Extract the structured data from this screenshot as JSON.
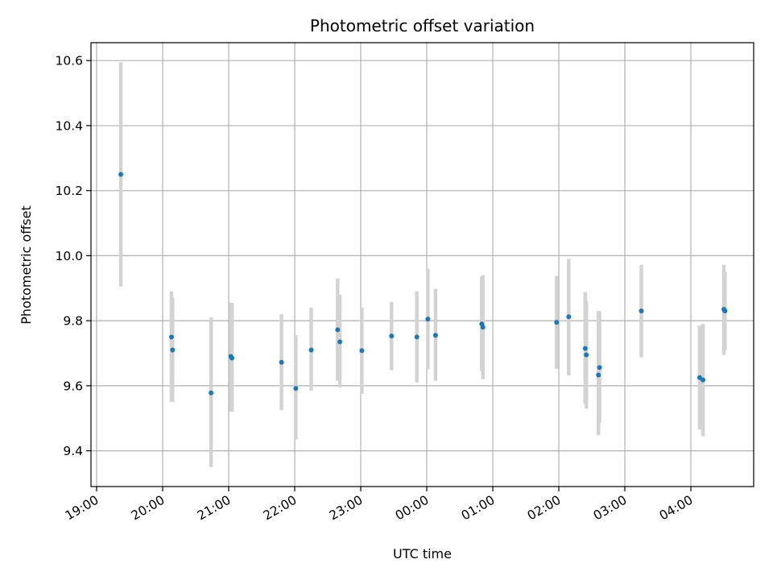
{
  "chart_data": {
    "type": "scatter",
    "title": "Photometric offset variation",
    "xlabel": "UTC time",
    "ylabel": "Photometric offset",
    "xlim": [
      "19:00",
      "05:00"
    ],
    "ylim": [
      9.29,
      10.655
    ],
    "grid": true,
    "legend": "none",
    "x_ticks": [
      "19:00",
      "20:00",
      "21:00",
      "22:00",
      "23:00",
      "00:00",
      "01:00",
      "02:00",
      "03:00",
      "04:00"
    ],
    "y_ticks": [
      "9.4",
      "9.6",
      "9.8",
      "10.0",
      "10.2",
      "10.4",
      "10.6"
    ],
    "colors": {
      "point": "#1f77b4",
      "errorbar": "#d3d3d3",
      "grid": "#b0b0b0"
    },
    "points": [
      {
        "time": "19:22",
        "y": 10.25,
        "lo": 9.905,
        "hi": 10.595
      },
      {
        "time": "20:08",
        "y": 9.75,
        "lo": 9.55,
        "hi": 9.89
      },
      {
        "time": "20:09",
        "y": 9.71,
        "lo": 9.55,
        "hi": 9.87
      },
      {
        "time": "20:44",
        "y": 9.578,
        "lo": 9.35,
        "hi": 9.81
      },
      {
        "time": "21:02",
        "y": 9.69,
        "lo": 9.52,
        "hi": 9.855
      },
      {
        "time": "21:03",
        "y": 9.685,
        "lo": 9.52,
        "hi": 9.855
      },
      {
        "time": "21:48",
        "y": 9.672,
        "lo": 9.525,
        "hi": 9.82
      },
      {
        "time": "22:01",
        "y": 9.592,
        "lo": 9.435,
        "hi": 9.755
      },
      {
        "time": "22:15",
        "y": 9.71,
        "lo": 9.585,
        "hi": 9.84
      },
      {
        "time": "22:39",
        "y": 9.772,
        "lo": 9.615,
        "hi": 9.93
      },
      {
        "time": "22:41",
        "y": 9.735,
        "lo": 9.595,
        "hi": 9.88
      },
      {
        "time": "23:01",
        "y": 9.708,
        "lo": 9.575,
        "hi": 9.84
      },
      {
        "time": "23:28",
        "y": 9.753,
        "lo": 9.648,
        "hi": 9.858
      },
      {
        "time": "23:51",
        "y": 9.75,
        "lo": 9.61,
        "hi": 9.89
      },
      {
        "time": "00:01",
        "y": 9.805,
        "lo": 9.65,
        "hi": 9.96
      },
      {
        "time": "00:08",
        "y": 9.755,
        "lo": 9.615,
        "hi": 9.898
      },
      {
        "time": "00:50",
        "y": 9.79,
        "lo": 9.645,
        "hi": 9.935
      },
      {
        "time": "00:51",
        "y": 9.78,
        "lo": 9.62,
        "hi": 9.94
      },
      {
        "time": "01:58",
        "y": 9.795,
        "lo": 9.652,
        "hi": 9.938
      },
      {
        "time": "02:09",
        "y": 9.812,
        "lo": 9.632,
        "hi": 9.99
      },
      {
        "time": "02:24",
        "y": 9.715,
        "lo": 9.545,
        "hi": 9.888
      },
      {
        "time": "02:25",
        "y": 9.695,
        "lo": 9.53,
        "hi": 9.86
      },
      {
        "time": "02:36",
        "y": 9.633,
        "lo": 9.448,
        "hi": 9.83
      },
      {
        "time": "02:37",
        "y": 9.656,
        "lo": 9.485,
        "hi": 9.828
      },
      {
        "time": "03:15",
        "y": 9.83,
        "lo": 9.688,
        "hi": 9.972
      },
      {
        "time": "04:08",
        "y": 9.625,
        "lo": 9.465,
        "hi": 9.785
      },
      {
        "time": "04:11",
        "y": 9.618,
        "lo": 9.445,
        "hi": 9.79
      },
      {
        "time": "04:30",
        "y": 9.835,
        "lo": 9.695,
        "hi": 9.972
      },
      {
        "time": "04:31",
        "y": 9.83,
        "lo": 9.71,
        "hi": 9.95
      }
    ]
  }
}
